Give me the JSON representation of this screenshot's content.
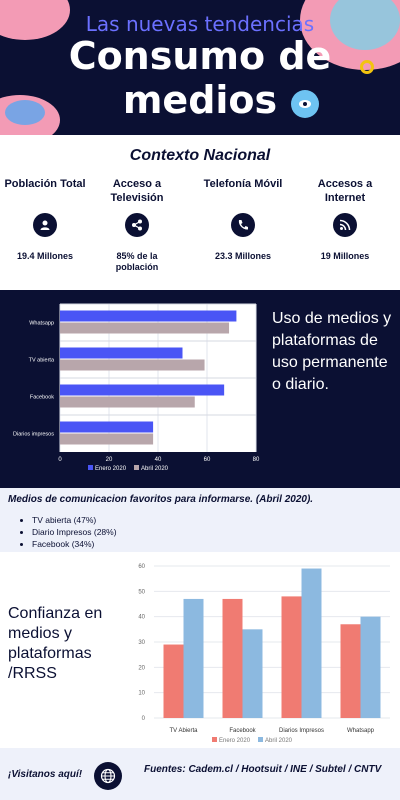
{
  "header": {
    "subtitle": "Las nuevas tendencias",
    "title_line1": "Consumo de",
    "title_line2": "medios"
  },
  "context": {
    "title": "Contexto Nacional",
    "stats": [
      {
        "label": "Población Total",
        "value": "19.4 Millones",
        "icon": "user-icon"
      },
      {
        "label": "Acceso a Televisión",
        "value": "85% de la población",
        "icon": "share-icon"
      },
      {
        "label": "Telefonía Móvil",
        "value": "23.3 Millones",
        "icon": "phone-icon"
      },
      {
        "label": "Accesos a Internet",
        "value": "19 Millones",
        "icon": "rss-icon"
      }
    ]
  },
  "usage": {
    "text": "Uso de medios y plataformas de uso permanente o diario."
  },
  "favorites": {
    "title": "Medios de comunicacion favoritos para informarse. (Abril 2020).",
    "items": [
      "TV abierta (47%)",
      "Diario Impresos (28%)",
      "Facebook  (34%)"
    ]
  },
  "trust": {
    "text": "Confianza en medios y plataformas /RRSS"
  },
  "footer": {
    "visit": "¡Visitanos aquí!",
    "sources": "Fuentes: Cadem.cl / Hootsuit / INE / Subtel / CNTV"
  },
  "colors": {
    "navy": "#0b1033",
    "blue_series": "#4a55f5",
    "mauve_series": "#b8a6ab",
    "salmon_series": "#f07b72",
    "light_blue_series": "#8cb9e0"
  },
  "chart_data": [
    {
      "type": "bar",
      "orientation": "horizontal",
      "categories": [
        "Whatsapp",
        "TV abierta",
        "Facebook",
        "Diarios impresos"
      ],
      "series": [
        {
          "name": "Enero 2020",
          "values": [
            72,
            50,
            67,
            38
          ]
        },
        {
          "name": "Abril 2020",
          "values": [
            69,
            59,
            55,
            38
          ]
        }
      ],
      "xlim": [
        0,
        80
      ],
      "xticks": [
        0,
        20,
        40,
        60,
        80
      ],
      "legend": "bottom",
      "grid": true
    },
    {
      "type": "bar",
      "categories": [
        "TV Abierta",
        "Facebook",
        "Diarios Impresos",
        "Whatsapp"
      ],
      "series": [
        {
          "name": "Enero 2020",
          "values": [
            29,
            47,
            48,
            37
          ]
        },
        {
          "name": "Abril 2020",
          "values": [
            47,
            35,
            59,
            40
          ]
        }
      ],
      "ylim": [
        0,
        60
      ],
      "yticks": [
        0,
        10,
        20,
        30,
        40,
        50,
        60
      ],
      "legend": "bottom",
      "grid": true
    }
  ]
}
